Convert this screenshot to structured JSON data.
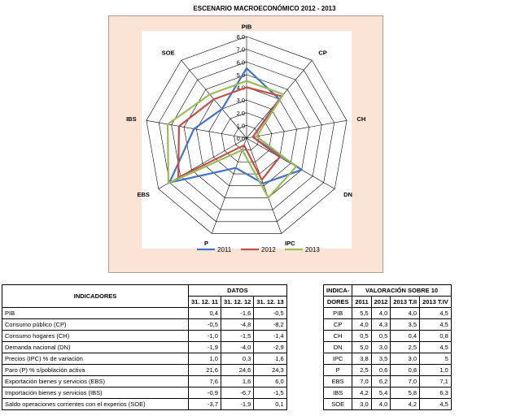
{
  "chart_data": {
    "type": "radar",
    "title": "ESCENARIO MACROECONÓMICO 2012 - 2013",
    "axes": [
      "PIB",
      "CP",
      "CH",
      "DN",
      "IPC",
      "P",
      "EBS",
      "IBS",
      "SOE"
    ],
    "r_ticks": [
      "0,0",
      "1,0",
      "2,0",
      "3,0",
      "4,0",
      "5,0",
      "6,0",
      "7,0",
      "8,0"
    ],
    "rlim": [
      0,
      8
    ],
    "legend_position": "bottom",
    "series": [
      {
        "name": "2011",
        "color": "#4472c4",
        "values": [
          5.5,
          4.0,
          0.5,
          5.0,
          3.8,
          2.5,
          7.0,
          4.2,
          3.0
        ]
      },
      {
        "name": "2012",
        "color": "#c0504d",
        "values": [
          4.0,
          4.3,
          0.5,
          3.0,
          3.5,
          0.6,
          6.2,
          5.4,
          4.0
        ]
      },
      {
        "name": "2013",
        "color": "#9bbb59",
        "values": [
          4.5,
          4.5,
          0.8,
          4.5,
          5.0,
          1.0,
          7.1,
          6.3,
          4.5
        ]
      }
    ]
  },
  "indicators": {
    "header": "INDICADORES",
    "datos_header": "DATOS",
    "dates": [
      "31. 12. 11",
      "31. 12. 12",
      "31. 12. 13"
    ],
    "rows": [
      {
        "label": "PIB",
        "v": [
          "0,4",
          "-1,6",
          "-0,5"
        ]
      },
      {
        "label": "Consumo público (CP)",
        "v": [
          "-0,5",
          "-4,8",
          "-8,2"
        ]
      },
      {
        "label": "Consumo hogares (CH)",
        "v": [
          "-1,0",
          "-1,5",
          "-1,4"
        ]
      },
      {
        "label": "Demanda nacional (DN)",
        "v": [
          "-1,9",
          "-4,0",
          "-2,9"
        ]
      },
      {
        "label": "Precios (IPC) % de variación",
        "v": [
          "1,0",
          "0,3",
          "1,6"
        ]
      },
      {
        "label": "Paro (P) % s/población activa",
        "v": [
          "21,6",
          "24,6",
          "24,3"
        ]
      },
      {
        "label": "Exportación bienes y servicios (EBS)",
        "v": [
          "7,6",
          "1,6",
          "6,0"
        ]
      },
      {
        "label": "Importación bienes y servicios (IBS)",
        "v": [
          "-0,9",
          "-6,7",
          "-1,5"
        ]
      },
      {
        "label": "Saldo operaciones corrientes con el experios (SOE)",
        "v": [
          "-3,7",
          "-1,9",
          "0,1"
        ]
      }
    ]
  },
  "valoracion": {
    "header_line1": "INDICA-",
    "header_line2": "DORES",
    "title": "VALORACIÓN SOBRE 10",
    "cols": [
      "2011",
      "2012",
      "2013 T.II",
      "2013 T.IV"
    ],
    "rows": [
      {
        "label": "PIB",
        "v": [
          "5,5",
          "4,0",
          "4,0",
          "4,5"
        ]
      },
      {
        "label": "CP",
        "v": [
          "4,0",
          "4,3",
          "3,5",
          "4,5"
        ]
      },
      {
        "label": "CH",
        "v": [
          "0,5",
          "0,5",
          "0,4",
          "0,8"
        ]
      },
      {
        "label": "DN",
        "v": [
          "5,0",
          "3,0",
          "2,5",
          "4,5"
        ]
      },
      {
        "label": "IPC",
        "v": [
          "3,8",
          "3,5",
          "3,0",
          "5"
        ]
      },
      {
        "label": "P",
        "v": [
          "2,5",
          "0,6",
          "0,8",
          "1,0"
        ]
      },
      {
        "label": "EBS",
        "v": [
          "7,0",
          "6,2",
          "7,0",
          "7,1"
        ]
      },
      {
        "label": "IBS",
        "v": [
          "4,2",
          "5,4",
          "5,8",
          "6,3"
        ]
      },
      {
        "label": "SOE",
        "v": [
          "3,0",
          "4,0",
          "4,2",
          "4,5"
        ]
      }
    ]
  }
}
